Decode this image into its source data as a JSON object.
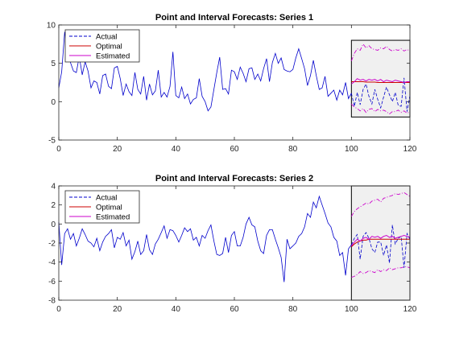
{
  "colors": {
    "actual": "#0000cc",
    "optimal": "#cc0000",
    "estimated": "#cc00cc",
    "forecast_bg": "#f0f0f0",
    "axes": "#262626"
  },
  "chart_data": [
    {
      "type": "line",
      "title": "Point and Interval Forecasts: Series 1",
      "xlabel": "",
      "ylabel": "",
      "xlim": [
        0,
        120
      ],
      "ylim": [
        -5,
        10
      ],
      "xticks": [
        0,
        20,
        40,
        60,
        80,
        100,
        120
      ],
      "yticks": [
        -5,
        0,
        5,
        10
      ],
      "grid": false,
      "legend": {
        "placement": "top-left",
        "entries": [
          "Actual",
          "Optimal",
          "Estimated"
        ]
      },
      "forecast_region": {
        "x": [
          100,
          120
        ],
        "y": [
          -2,
          8
        ]
      },
      "series": [
        {
          "name": "Actual",
          "style": "solid-history / dashed-forecast",
          "x": [
            0,
            1,
            2,
            3,
            4,
            5,
            6,
            7,
            8,
            9,
            10,
            11,
            12,
            13,
            14,
            15,
            16,
            17,
            18,
            19,
            20,
            21,
            22,
            23,
            24,
            25,
            26,
            27,
            28,
            29,
            30,
            31,
            32,
            33,
            34,
            35,
            36,
            37,
            38,
            39,
            40,
            41,
            42,
            43,
            44,
            45,
            46,
            47,
            48,
            49,
            50,
            51,
            52,
            53,
            54,
            55,
            56,
            57,
            58,
            59,
            60,
            61,
            62,
            63,
            64,
            65,
            66,
            67,
            68,
            69,
            70,
            71,
            72,
            73,
            74,
            75,
            76,
            77,
            78,
            79,
            80,
            81,
            82,
            83,
            84,
            85,
            86,
            87,
            88,
            89,
            90,
            91,
            92,
            93,
            94,
            95,
            96,
            97,
            98,
            99,
            100,
            101,
            102,
            103,
            104,
            105,
            106,
            107,
            108,
            109,
            110,
            111,
            112,
            113,
            114,
            115,
            116,
            117,
            118,
            119,
            120
          ],
          "y": [
            1.8,
            3.9,
            9.1,
            6.2,
            5.1,
            4.0,
            3.8,
            5.9,
            3.5,
            5.2,
            4.0,
            1.8,
            2.7,
            2.5,
            1.0,
            3.4,
            3.6,
            2.0,
            1.7,
            4.4,
            4.6,
            3.0,
            0.8,
            2.3,
            1.3,
            0.8,
            3.8,
            1.6,
            1.0,
            3.3,
            0.2,
            2.3,
            0.9,
            1.4,
            4.1,
            0.6,
            1.2,
            0.6,
            2.0,
            6.5,
            0.8,
            0.5,
            1.9,
            0.4,
            1.0,
            -0.3,
            0.3,
            0.5,
            3.0,
            0.7,
            0.0,
            -1.2,
            -0.7,
            1.6,
            3.8,
            5.8,
            1.6,
            1.7,
            1.0,
            4.1,
            3.9,
            2.9,
            4.5,
            3.7,
            2.6,
            4.3,
            4.4,
            2.9,
            3.6,
            2.7,
            4.3,
            5.6,
            2.6,
            5.1,
            6.3,
            5.0,
            5.7,
            4.2,
            4.0,
            3.9,
            4.2,
            5.7,
            6.9,
            5.6,
            4.3,
            2.1,
            3.4,
            5.4,
            3.4,
            1.6,
            1.8,
            3.3,
            0.7,
            1.1,
            1.5,
            0.2,
            1.5,
            0.9,
            2.5,
            0.4,
            1.1,
            -0.6,
            1.2,
            -0.4,
            1.6,
            2.3,
            0.7,
            -0.3,
            1.6,
            0.3,
            -0.8,
            0.6,
            1.9,
            0.9,
            0.0,
            1.2,
            -0.5,
            -0.6,
            3.1,
            -1.3,
            0.8
          ]
        },
        {
          "name": "Optimal",
          "x": [
            100,
            101,
            102,
            103,
            104,
            105,
            106,
            107,
            108,
            109,
            110,
            111,
            112,
            113,
            114,
            115,
            116,
            117,
            118,
            119,
            120
          ],
          "y": [
            2.6,
            2.6,
            2.6,
            2.6,
            2.6,
            2.55,
            2.55,
            2.55,
            2.55,
            2.5,
            2.5,
            2.5,
            2.5,
            2.5,
            2.5,
            2.5,
            2.5,
            2.5,
            2.5,
            2.5,
            2.5
          ]
        },
        {
          "name": "Estimated",
          "x": [
            100,
            101,
            102,
            103,
            104,
            105,
            106,
            107,
            108,
            109,
            110,
            111,
            112,
            113,
            114,
            115,
            116,
            117,
            118,
            119,
            120
          ],
          "y": [
            2.3,
            2.6,
            3.0,
            2.8,
            2.9,
            2.7,
            2.9,
            2.8,
            2.9,
            2.7,
            2.9,
            2.6,
            2.8,
            2.7,
            2.6,
            2.8,
            2.7,
            2.6,
            2.5,
            2.6,
            2.6
          ]
        },
        {
          "name": "Estimated upper bound",
          "style": "dash-dot",
          "x": [
            100,
            101,
            102,
            103,
            104,
            105,
            106,
            107,
            108,
            109,
            110,
            111,
            112,
            113,
            114,
            115,
            116,
            117,
            118,
            119,
            120
          ],
          "y": [
            5.3,
            6.3,
            6.9,
            6.7,
            7.5,
            7.0,
            7.3,
            6.9,
            6.8,
            6.7,
            7.0,
            6.9,
            7.2,
            6.8,
            6.6,
            6.8,
            6.7,
            6.9,
            6.6,
            6.8,
            6.6
          ]
        },
        {
          "name": "Estimated lower bound",
          "style": "dash-dot",
          "x": [
            100,
            101,
            102,
            103,
            104,
            105,
            106,
            107,
            108,
            109,
            110,
            111,
            112,
            113,
            114,
            115,
            116,
            117,
            118,
            119,
            120
          ],
          "y": [
            -0.3,
            -0.7,
            -0.9,
            -1.2,
            -0.9,
            -1.4,
            -1.0,
            -0.9,
            -1.3,
            -1.0,
            -1.2,
            -1.1,
            -1.3,
            -1.6,
            -1.3,
            -1.3,
            -1.1,
            -1.4,
            -1.2,
            -1.5,
            -1.3
          ]
        }
      ]
    },
    {
      "type": "line",
      "title": "Point and Interval Forecasts: Series 2",
      "xlabel": "",
      "ylabel": "",
      "xlim": [
        0,
        120
      ],
      "ylim": [
        -8,
        4
      ],
      "xticks": [
        0,
        20,
        40,
        60,
        80,
        100,
        120
      ],
      "yticks": [
        -8,
        -6,
        -4,
        -2,
        0,
        2,
        4
      ],
      "grid": false,
      "legend": {
        "placement": "top-left",
        "entries": [
          "Actual",
          "Optimal",
          "Estimated"
        ]
      },
      "forecast_region": {
        "x": [
          100,
          120
        ],
        "y": [
          -8,
          4
        ]
      },
      "series": [
        {
          "name": "Actual",
          "style": "solid-history / dashed-forecast",
          "x": [
            0,
            1,
            2,
            3,
            4,
            5,
            6,
            7,
            8,
            9,
            10,
            11,
            12,
            13,
            14,
            15,
            16,
            17,
            18,
            19,
            20,
            21,
            22,
            23,
            24,
            25,
            26,
            27,
            28,
            29,
            30,
            31,
            32,
            33,
            34,
            35,
            36,
            37,
            38,
            39,
            40,
            41,
            42,
            43,
            44,
            45,
            46,
            47,
            48,
            49,
            50,
            51,
            52,
            53,
            54,
            55,
            56,
            57,
            58,
            59,
            60,
            61,
            62,
            63,
            64,
            65,
            66,
            67,
            68,
            69,
            70,
            71,
            72,
            73,
            74,
            75,
            76,
            77,
            78,
            79,
            80,
            81,
            82,
            83,
            84,
            85,
            86,
            87,
            88,
            89,
            90,
            91,
            92,
            93,
            94,
            95,
            96,
            97,
            98,
            99,
            100,
            101,
            102,
            103,
            104,
            105,
            106,
            107,
            108,
            109,
            110,
            111,
            112,
            113,
            114,
            115,
            116,
            117,
            118,
            119,
            120
          ],
          "y": [
            0.2,
            -4.3,
            -1.0,
            -0.5,
            -1.6,
            -1.0,
            -2.3,
            -1.5,
            -0.5,
            -1.1,
            -1.8,
            -2.0,
            -2.4,
            -1.5,
            -2.8,
            -1.9,
            -1.3,
            -1.0,
            -0.6,
            -2.5,
            -1.4,
            -1.6,
            -0.9,
            -2.3,
            -1.7,
            -3.7,
            -2.9,
            -1.8,
            -3.2,
            -2.8,
            -1.1,
            -2.7,
            -3.2,
            -2.1,
            -1.6,
            -0.9,
            -0.2,
            -1.5,
            -0.6,
            -0.7,
            -1.2,
            -1.9,
            -1.2,
            -0.4,
            -0.8,
            -0.5,
            -1.7,
            -1.4,
            -2.3,
            -1.2,
            -1.5,
            -0.7,
            -0.1,
            -1.8,
            -3.2,
            -3.3,
            -3.1,
            -1.4,
            -3.0,
            -1.2,
            -0.8,
            -2.3,
            -2.3,
            -1.4,
            0.0,
            0.7,
            -0.1,
            -0.3,
            -1.8,
            -2.8,
            -3.1,
            -1.2,
            -0.6,
            -0.6,
            -1.6,
            -2.5,
            -3.5,
            -6.1,
            -1.6,
            -2.6,
            -2.3,
            -2.0,
            -1.3,
            -1.0,
            -0.3,
            1.1,
            0.7,
            2.3,
            1.7,
            2.9,
            2.0,
            1.1,
            0.1,
            -0.3,
            -1.4,
            -1.8,
            -3.3,
            -3.0,
            -5.4,
            -2.6,
            -2.2,
            -1.5,
            -1.1,
            -3.7,
            -1.3,
            -0.9,
            -1.5,
            -2.6,
            -3.0,
            -1.9,
            -1.9,
            -3.3,
            -2.2,
            -4.1,
            -0.1,
            -2.1,
            -1.5,
            -1.3,
            -4.6,
            -1.0,
            -1.6
          ]
        },
        {
          "name": "Optimal",
          "x": [
            100,
            101,
            102,
            103,
            104,
            105,
            106,
            107,
            108,
            109,
            110,
            111,
            112,
            113,
            114,
            115,
            116,
            117,
            118,
            119,
            120
          ],
          "y": [
            -2.4,
            -2.1,
            -1.9,
            -1.8,
            -1.7,
            -1.7,
            -1.6,
            -1.6,
            -1.6,
            -1.6,
            -1.6,
            -1.6,
            -1.6,
            -1.6,
            -1.6,
            -1.6,
            -1.6,
            -1.6,
            -1.6,
            -1.6,
            -1.6
          ]
        },
        {
          "name": "Estimated",
          "x": [
            100,
            101,
            102,
            103,
            104,
            105,
            106,
            107,
            108,
            109,
            110,
            111,
            112,
            113,
            114,
            115,
            116,
            117,
            118,
            119,
            120
          ],
          "y": [
            -2.3,
            -1.9,
            -1.6,
            -1.8,
            -1.5,
            -1.4,
            -1.6,
            -1.3,
            -1.4,
            -1.3,
            -1.5,
            -1.3,
            -1.2,
            -1.4,
            -1.3,
            -1.5,
            -1.4,
            -1.3,
            -1.2,
            -1.3,
            -1.4
          ]
        },
        {
          "name": "Estimated upper bound",
          "style": "dash-dot",
          "x": [
            100,
            101,
            102,
            103,
            104,
            105,
            106,
            107,
            108,
            109,
            110,
            111,
            112,
            113,
            114,
            115,
            116,
            117,
            118,
            119,
            120
          ],
          "y": [
            0.8,
            1.3,
            1.6,
            1.8,
            2.0,
            2.2,
            2.1,
            2.4,
            2.5,
            2.6,
            2.3,
            2.7,
            2.8,
            2.9,
            3.0,
            3.2,
            3.1,
            3.2,
            3.3,
            3.1,
            2.9
          ]
        },
        {
          "name": "Estimated lower bound",
          "style": "dash-dot",
          "x": [
            100,
            101,
            102,
            103,
            104,
            105,
            106,
            107,
            108,
            109,
            110,
            111,
            112,
            113,
            114,
            115,
            116,
            117,
            118,
            119,
            120
          ],
          "y": [
            -5.6,
            -5.5,
            -5.3,
            -5.0,
            -5.2,
            -5.1,
            -4.9,
            -5.0,
            -5.1,
            -4.8,
            -5.0,
            -4.8,
            -4.9,
            -4.6,
            -4.8,
            -4.7,
            -4.6,
            -4.6,
            -4.5,
            -4.5,
            -4.6
          ]
        }
      ]
    }
  ]
}
